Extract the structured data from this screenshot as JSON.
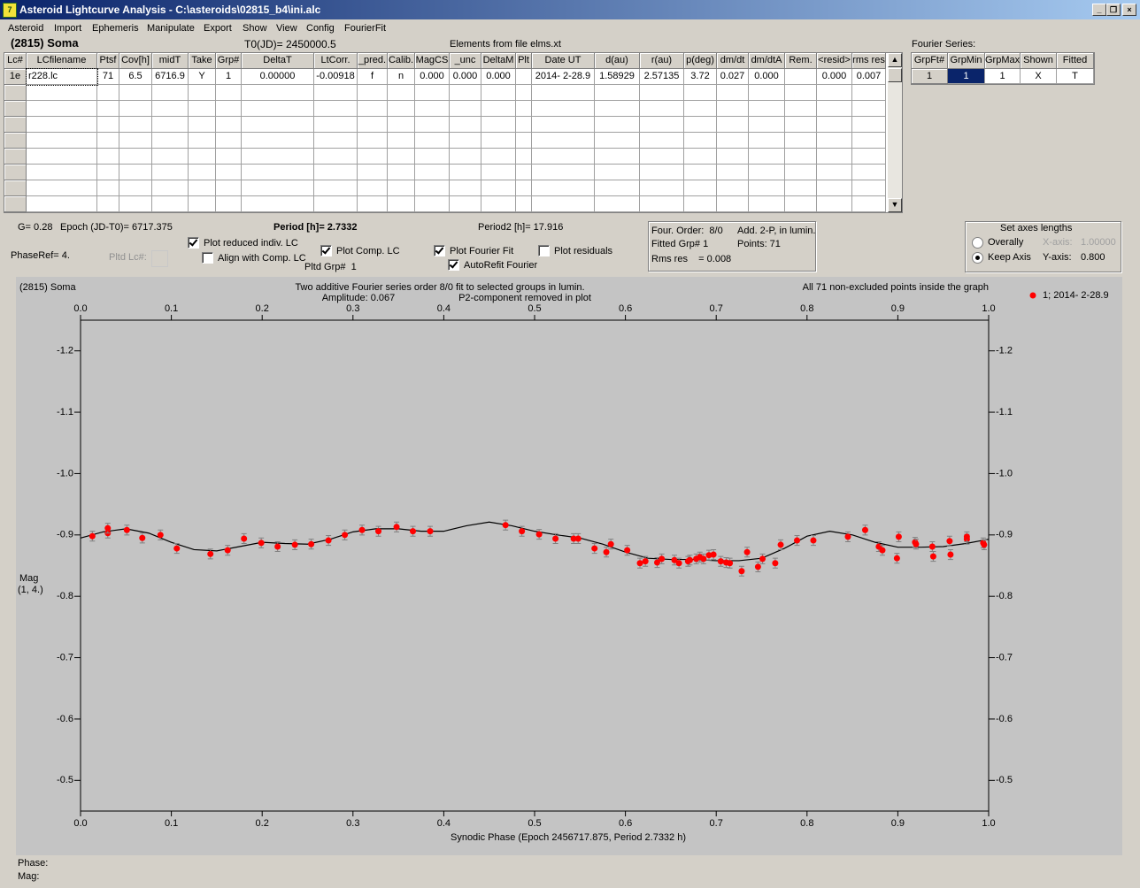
{
  "window": {
    "title": "Asteroid Lightcurve Analysis - C:\\asteroids\\02815_b4\\ini.alc"
  },
  "menu": [
    "Asteroid",
    "Import",
    "Ephemeris",
    "Manipulate",
    "Export",
    "Show",
    "View",
    "Config",
    "FourierFit"
  ],
  "header": {
    "asteroid": "(2815) Soma",
    "t0": "T0(JD)= 2450000.5",
    "elements": "Elements from file elms.xt",
    "fourier_label": "Fourier Series:"
  },
  "table": {
    "headers": [
      "Lc#",
      "LCfilename",
      "Ptsf",
      "Cov[h]",
      "midT",
      "Take",
      "Grp#",
      "DeltaT",
      "LtCorr.",
      "_pred.",
      "Calib.",
      "MagCS",
      "_unc",
      "DeltaM",
      "Plt",
      "Date UT",
      "d(au)",
      "r(au)",
      "p(deg)",
      "dm/dt",
      "dm/dtA",
      "Rem.",
      "<resid>",
      "rms res"
    ],
    "rows": [
      [
        "1e",
        "r228.lc",
        "71",
        "6.5",
        "6716.9",
        "Y",
        "1",
        "0.00000",
        "-0.00918",
        "f",
        "n",
        "0.000",
        "0.000",
        "0.000",
        null,
        "2014- 2-28.9",
        "1.58929",
        "2.57135",
        "3.72",
        "0.027",
        "0.000",
        null,
        "0.000",
        "0.007"
      ]
    ]
  },
  "fourier": {
    "headers": [
      "GrpFt#",
      "GrpMin",
      "GrpMax",
      "Shown",
      "Fitted"
    ],
    "rows": [
      [
        "1",
        "1",
        "1",
        "X",
        "T"
      ]
    ]
  },
  "controls": {
    "g": "G= 0.28",
    "epoch": "Epoch (JD-T0)= 6717.375",
    "period": "Period [h]= 2.7332",
    "period2": "Period2 [h]= 17.916",
    "phaseref": "PhaseRef= 4.",
    "pltd_lc": "Pltd Lc#:",
    "plot_reduced": "Plot reduced indiv. LC",
    "align": "Align with Comp. LC",
    "plot_comp": "Plot Comp. LC",
    "pltd_grp": "Pltd Grp#  1",
    "plot_fourier": "Plot Fourier Fit",
    "autorefit": "AutoRefit Fourier",
    "plot_residuals": "Plot residuals"
  },
  "fit_info": {
    "order": "Four. Order:  8/0",
    "add": "Add. 2-P, in lumin.",
    "fitted": "Fitted Grp# 1",
    "points": "Points: 71",
    "rms": "Rms res    = 0.008"
  },
  "axes_lengths": {
    "title": "Set axes lengths",
    "overally": "Overally",
    "keep": "Keep Axis",
    "x_label": "X-axis:",
    "x_value": "1.00000",
    "y_label": "Y-axis:",
    "y_value": "0.800"
  },
  "chart_data": {
    "type": "scatter",
    "title": "Two additive Fourier series order 8/0 fit to selected groups in lumin.",
    "subtitle": [
      "Amplitude: 0.067",
      "P2-component removed in plot"
    ],
    "annotations": [
      "(2815) Soma",
      "All 71 non-excluded points inside the graph"
    ],
    "xlabel": "Synodic Phase (Epoch 2456717.875, Period 2.7332 h)",
    "ylabel": [
      "Mag",
      "(1, 4.)"
    ],
    "xlim": [
      0,
      1
    ],
    "ylim": [
      -1.25,
      -0.45
    ],
    "y_inverted": true,
    "xticks": [
      {
        "value": 0,
        "label": "0.0"
      },
      0.1,
      0.2,
      0.3,
      0.4,
      0.5,
      0.6,
      0.7,
      0.8,
      0.9,
      {
        "value": 1,
        "label": "1.0"
      }
    ],
    "yticks": [
      -1.2,
      -1.1,
      {
        "value": -1,
        "label": "-1.0"
      },
      -0.9,
      -0.8,
      -0.7,
      -0.6,
      -0.5
    ],
    "legend": "right",
    "series": [
      {
        "name": "1; 2014- 2-28.9",
        "color": "#ff0000",
        "error": 0.008,
        "x": [
          0.013,
          0.03,
          0.03,
          0.051,
          0.068,
          0.088,
          0.106,
          0.143,
          0.162,
          0.18,
          0.199,
          0.217,
          0.236,
          0.254,
          0.273,
          0.291,
          0.31,
          0.328,
          0.348,
          0.366,
          0.385,
          0.468,
          0.486,
          0.505,
          0.523,
          0.543,
          0.548,
          0.566,
          0.579,
          0.584,
          0.602,
          0.616,
          0.622,
          0.635,
          0.64,
          0.654,
          0.659,
          0.669,
          0.671,
          0.678,
          0.682,
          0.686,
          0.692,
          0.697,
          0.705,
          0.711,
          0.715,
          0.728,
          0.734,
          0.746,
          0.751,
          0.765,
          0.771,
          0.789,
          0.807,
          0.845,
          0.864,
          0.879,
          0.883,
          0.899,
          0.901,
          0.919,
          0.92,
          0.938,
          0.939,
          0.957,
          0.958,
          0.976,
          0.976,
          0.994,
          0.995
        ],
        "values": [
          -0.898,
          -0.903,
          -0.911,
          -0.908,
          -0.895,
          -0.9,
          -0.878,
          -0.869,
          -0.875,
          -0.894,
          -0.887,
          -0.881,
          -0.884,
          -0.885,
          -0.891,
          -0.9,
          -0.908,
          -0.906,
          -0.913,
          -0.906,
          -0.906,
          -0.916,
          -0.906,
          -0.901,
          -0.894,
          -0.894,
          -0.894,
          -0.878,
          -0.872,
          -0.885,
          -0.875,
          -0.854,
          -0.857,
          -0.855,
          -0.861,
          -0.859,
          -0.854,
          -0.857,
          -0.859,
          -0.861,
          -0.864,
          -0.861,
          -0.867,
          -0.868,
          -0.857,
          -0.855,
          -0.854,
          -0.841,
          -0.872,
          -0.848,
          -0.861,
          -0.854,
          -0.884,
          -0.891,
          -0.891,
          -0.897,
          -0.908,
          -0.881,
          -0.875,
          -0.862,
          -0.897,
          -0.888,
          -0.885,
          -0.881,
          -0.865,
          -0.89,
          -0.868,
          -0.893,
          -0.897,
          -0.887,
          -0.884
        ]
      }
    ],
    "fit_curve": {
      "color": "#000000",
      "x": [
        0,
        0.025,
        0.05,
        0.075,
        0.1,
        0.125,
        0.15,
        0.175,
        0.2,
        0.225,
        0.25,
        0.275,
        0.3,
        0.325,
        0.35,
        0.375,
        0.4,
        0.425,
        0.45,
        0.475,
        0.5,
        0.525,
        0.55,
        0.575,
        0.6,
        0.625,
        0.65,
        0.675,
        0.7,
        0.725,
        0.75,
        0.775,
        0.8,
        0.825,
        0.85,
        0.875,
        0.9,
        0.925,
        0.95,
        0.975,
        1
      ],
      "values": [
        -0.895,
        -0.905,
        -0.91,
        -0.903,
        -0.888,
        -0.876,
        -0.874,
        -0.881,
        -0.888,
        -0.886,
        -0.885,
        -0.893,
        -0.905,
        -0.91,
        -0.91,
        -0.906,
        -0.906,
        -0.915,
        -0.921,
        -0.915,
        -0.906,
        -0.9,
        -0.895,
        -0.885,
        -0.872,
        -0.862,
        -0.86,
        -0.86,
        -0.858,
        -0.858,
        -0.862,
        -0.878,
        -0.898,
        -0.906,
        -0.9,
        -0.888,
        -0.88,
        -0.88,
        -0.881,
        -0.886,
        -0.893
      ]
    }
  },
  "status": {
    "phase": "Phase:",
    "mag": "Mag:"
  }
}
